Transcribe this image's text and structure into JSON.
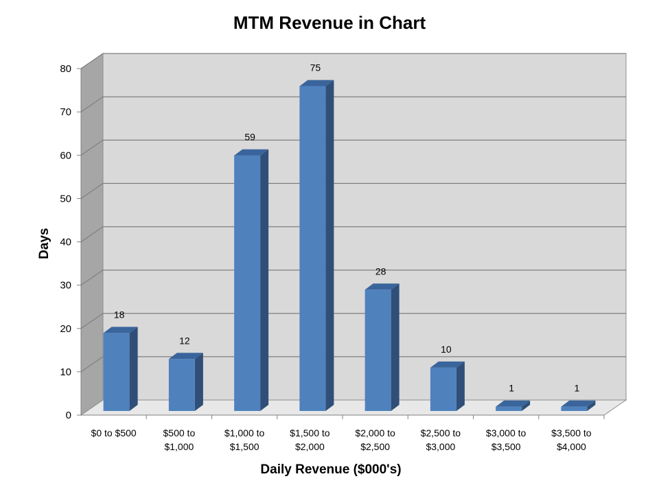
{
  "chart_data": {
    "type": "bar",
    "title": "MTM Revenue in Chart",
    "xlabel": "Daily Revenue ($000's)",
    "ylabel": "Days",
    "ylim": [
      0,
      80
    ],
    "yticks": [
      0,
      10,
      20,
      30,
      40,
      50,
      60,
      70,
      80
    ],
    "grid": true,
    "legend": "none",
    "style": "3d-column",
    "categories": [
      [
        "$0 to $500"
      ],
      [
        "$500 to",
        "$1,000"
      ],
      [
        "$1,000 to",
        "$1,500"
      ],
      [
        "$1,500 to",
        "$2,000"
      ],
      [
        "$2,000 to",
        "$2,500"
      ],
      [
        "$2,500 to",
        "$3,000"
      ],
      [
        "$3,000 to",
        "$3,500"
      ],
      [
        "$3,500 to",
        "$4,000"
      ]
    ],
    "values": [
      18,
      12,
      59,
      75,
      28,
      10,
      1,
      1
    ],
    "colors": {
      "bar_front": "#4F81BD",
      "bar_side": "#2F4F78",
      "bar_top": "#3A659C",
      "back_wall": "#D9D9D9",
      "side_wall": "#A6A6A6",
      "floor": "#E8E8E8",
      "gridline": "#7F7F7F"
    }
  }
}
